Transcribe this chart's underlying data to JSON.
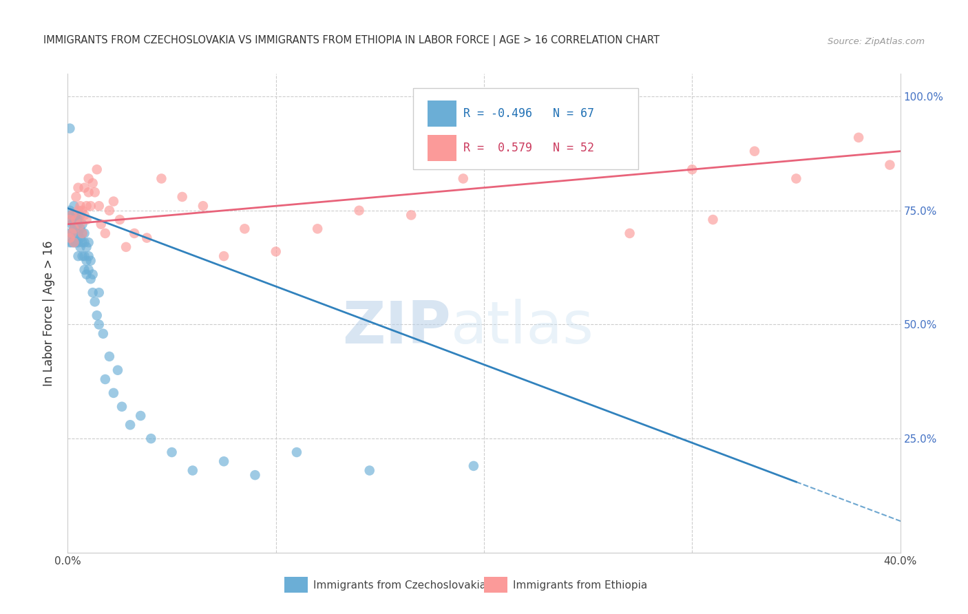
{
  "title": "IMMIGRANTS FROM CZECHOSLOVAKIA VS IMMIGRANTS FROM ETHIOPIA IN LABOR FORCE | AGE > 16 CORRELATION CHART",
  "source": "Source: ZipAtlas.com",
  "ylabel_left": "In Labor Force | Age > 16",
  "xmin": 0.0,
  "xmax": 0.4,
  "ymin": 0.0,
  "ymax": 1.05,
  "right_yticks": [
    0.25,
    0.5,
    0.75,
    1.0
  ],
  "right_yticklabels": [
    "25.0%",
    "50.0%",
    "75.0%",
    "100.0%"
  ],
  "bottom_xticks": [
    0.0,
    0.05,
    0.1,
    0.15,
    0.2,
    0.25,
    0.3,
    0.35,
    0.4
  ],
  "bottom_xticklabels": [
    "0.0%",
    "",
    "",
    "",
    "",
    "",
    "",
    "",
    "40.0%"
  ],
  "legend_r_czech": "-0.496",
  "legend_n_czech": "67",
  "legend_r_ethiopia": "0.579",
  "legend_n_ethiopia": "52",
  "color_czech": "#6baed6",
  "color_ethiopia": "#fb9a99",
  "color_czech_line": "#3182bd",
  "color_ethiopia_line": "#e8637a",
  "watermark_zip": "ZIP",
  "watermark_atlas": "atlas",
  "grid_color": "#cccccc",
  "background_color": "#ffffff",
  "czech_scatter_x": [
    0.001,
    0.001,
    0.001,
    0.001,
    0.002,
    0.002,
    0.002,
    0.002,
    0.002,
    0.003,
    0.003,
    0.003,
    0.003,
    0.003,
    0.003,
    0.004,
    0.004,
    0.004,
    0.004,
    0.004,
    0.005,
    0.005,
    0.005,
    0.005,
    0.005,
    0.006,
    0.006,
    0.006,
    0.006,
    0.007,
    0.007,
    0.007,
    0.007,
    0.008,
    0.008,
    0.008,
    0.008,
    0.009,
    0.009,
    0.009,
    0.01,
    0.01,
    0.01,
    0.011,
    0.011,
    0.012,
    0.012,
    0.013,
    0.014,
    0.015,
    0.015,
    0.017,
    0.018,
    0.02,
    0.022,
    0.024,
    0.026,
    0.03,
    0.035,
    0.04,
    0.05,
    0.06,
    0.075,
    0.09,
    0.11,
    0.145,
    0.195
  ],
  "czech_scatter_y": [
    0.93,
    0.75,
    0.7,
    0.68,
    0.73,
    0.7,
    0.68,
    0.74,
    0.72,
    0.73,
    0.71,
    0.68,
    0.76,
    0.74,
    0.72,
    0.74,
    0.72,
    0.7,
    0.73,
    0.68,
    0.73,
    0.7,
    0.72,
    0.68,
    0.65,
    0.71,
    0.69,
    0.67,
    0.74,
    0.7,
    0.68,
    0.65,
    0.72,
    0.7,
    0.68,
    0.65,
    0.62,
    0.67,
    0.64,
    0.61,
    0.65,
    0.62,
    0.68,
    0.6,
    0.64,
    0.57,
    0.61,
    0.55,
    0.52,
    0.57,
    0.5,
    0.48,
    0.38,
    0.43,
    0.35,
    0.4,
    0.32,
    0.28,
    0.3,
    0.25,
    0.22,
    0.18,
    0.2,
    0.17,
    0.22,
    0.18,
    0.19
  ],
  "ethiopia_scatter_x": [
    0.001,
    0.001,
    0.002,
    0.002,
    0.003,
    0.003,
    0.004,
    0.004,
    0.005,
    0.005,
    0.006,
    0.006,
    0.007,
    0.007,
    0.008,
    0.008,
    0.009,
    0.009,
    0.01,
    0.01,
    0.011,
    0.012,
    0.013,
    0.014,
    0.015,
    0.016,
    0.018,
    0.02,
    0.022,
    0.025,
    0.028,
    0.032,
    0.038,
    0.045,
    0.055,
    0.065,
    0.075,
    0.085,
    0.1,
    0.12,
    0.14,
    0.165,
    0.19,
    0.22,
    0.26,
    0.3,
    0.33,
    0.35,
    0.38,
    0.395,
    0.27,
    0.31
  ],
  "ethiopia_scatter_y": [
    0.73,
    0.69,
    0.74,
    0.7,
    0.71,
    0.68,
    0.73,
    0.78,
    0.75,
    0.8,
    0.76,
    0.72,
    0.75,
    0.7,
    0.8,
    0.74,
    0.76,
    0.73,
    0.79,
    0.82,
    0.76,
    0.81,
    0.79,
    0.84,
    0.76,
    0.72,
    0.7,
    0.75,
    0.77,
    0.73,
    0.67,
    0.7,
    0.69,
    0.82,
    0.78,
    0.76,
    0.65,
    0.71,
    0.66,
    0.71,
    0.75,
    0.74,
    0.82,
    0.86,
    0.85,
    0.84,
    0.88,
    0.82,
    0.91,
    0.85,
    0.7,
    0.73
  ]
}
